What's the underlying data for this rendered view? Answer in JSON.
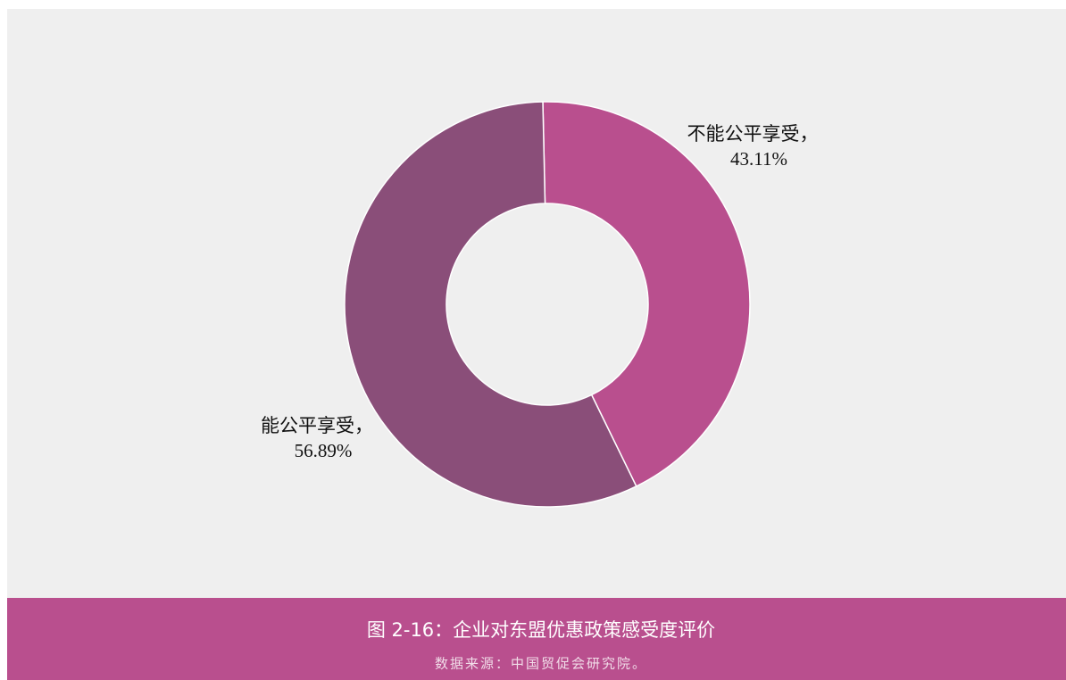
{
  "chart_data": {
    "type": "donut",
    "categories": [
      "不能公平享受，",
      "能公平享受，"
    ],
    "values": [
      43.11,
      56.89
    ],
    "value_labels": [
      "43.11%",
      "56.89%"
    ],
    "colors": [
      "#b94f8e",
      "#8a4e79"
    ],
    "title": "图 2-16：企业对东盟优惠政策感受度评价",
    "source": "数据来源：中国贸促会研究院。"
  }
}
